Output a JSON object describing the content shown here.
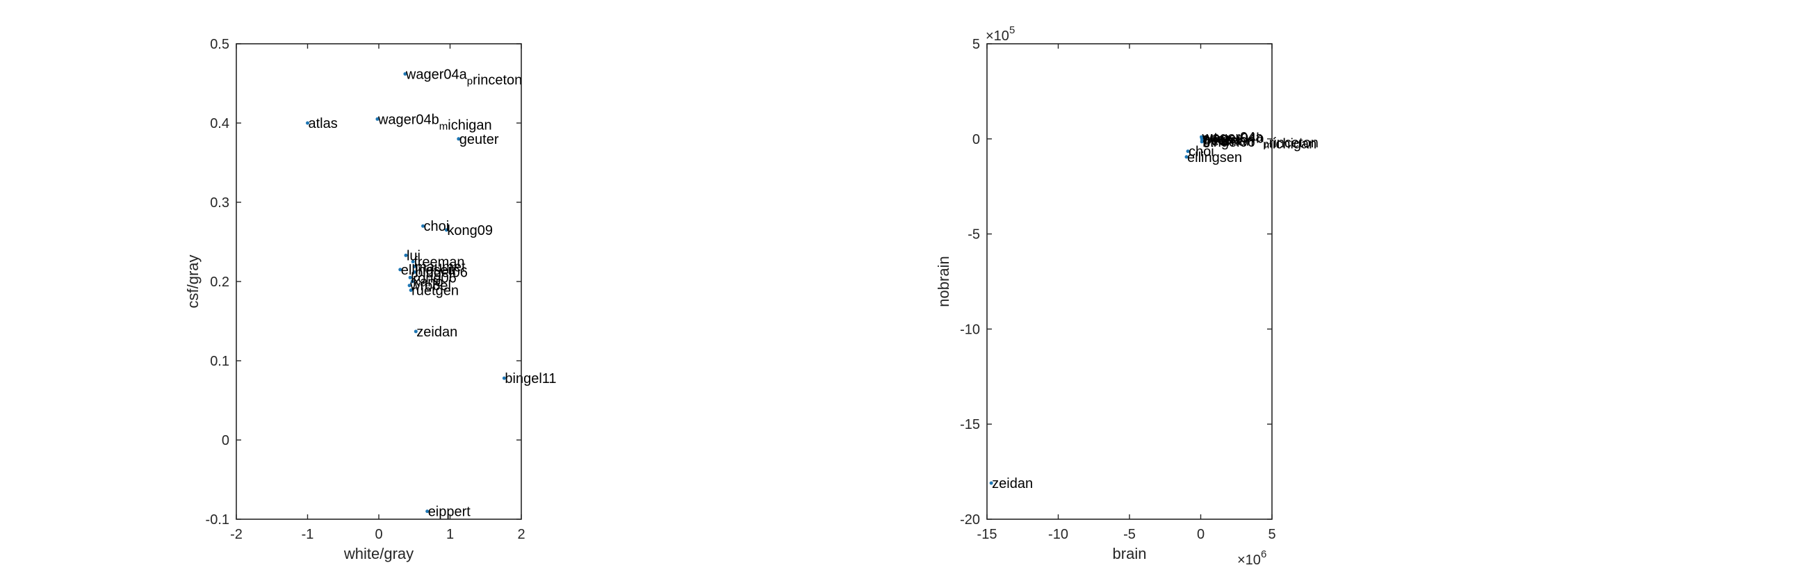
{
  "chart_data": [
    {
      "type": "scatter",
      "xlabel": "white/gray",
      "ylabel": "csf/gray",
      "xlim": [
        -2,
        2
      ],
      "ylim": [
        -0.1,
        0.5
      ],
      "xticks": [
        "-2",
        "-1",
        "0",
        "1",
        "2"
      ],
      "yticks": [
        "-0.1",
        "0",
        "0.1",
        "0.2",
        "0.3",
        "0.4",
        "0.5"
      ],
      "point_color": "#1f77b4",
      "points": [
        {
          "label": "wager04a_princeton",
          "x": 0.37,
          "y": 0.462
        },
        {
          "label": "wager04b_michigan",
          "x": -0.02,
          "y": 0.405
        },
        {
          "label": "atlas",
          "x": -1.0,
          "y": 0.4
        },
        {
          "label": "geuter",
          "x": 1.12,
          "y": 0.38
        },
        {
          "label": "choi",
          "x": 0.62,
          "y": 0.27
        },
        {
          "label": "kong09",
          "x": 0.95,
          "y": 0.265
        },
        {
          "label": "lui",
          "x": 0.38,
          "y": 0.233
        },
        {
          "label": "freeman",
          "x": 0.48,
          "y": 0.225
        },
        {
          "label": "maumet",
          "x": 0.5,
          "y": 0.219
        },
        {
          "label": "ellingsen",
          "x": 0.3,
          "y": 0.215
        },
        {
          "label": "bingel06",
          "x": 0.5,
          "y": 0.212
        },
        {
          "label": "kong06",
          "x": 0.44,
          "y": 0.205
        },
        {
          "label": "kano",
          "x": 0.47,
          "y": 0.2
        },
        {
          "label": "wrobel",
          "x": 0.43,
          "y": 0.195
        },
        {
          "label": "ruetgen",
          "x": 0.45,
          "y": 0.189
        },
        {
          "label": "zeidan",
          "x": 0.52,
          "y": 0.137
        },
        {
          "label": "bingel11",
          "x": 1.76,
          "y": 0.078
        },
        {
          "label": "eippert",
          "x": 0.68,
          "y": -0.09
        }
      ]
    },
    {
      "type": "scatter",
      "xlabel": "brain",
      "ylabel": "nobrain",
      "xlim": [
        -15,
        5
      ],
      "ylim": [
        -20,
        5
      ],
      "x_multiplier": "×10",
      "x_multiplier_exp": "6",
      "y_multiplier": "×10",
      "y_multiplier_exp": "5",
      "xticks": [
        "-15",
        "-10",
        "-5",
        "0",
        "5"
      ],
      "yticks": [
        "-20",
        "-15",
        "-10",
        "-5",
        "0",
        "5"
      ],
      "point_color": "#1f77b4",
      "points": [
        {
          "label": "wager04a_princeton",
          "x": 0.05,
          "y": 0.1
        },
        {
          "label": "wager04b_michigan",
          "x": 0.1,
          "y": 0.05
        },
        {
          "label": "atlas",
          "x": 0.08,
          "y": 0.02
        },
        {
          "label": "geuter",
          "x": 0.1,
          "y": -0.05
        },
        {
          "label": "freeman",
          "x": 0.1,
          "y": -0.1
        },
        {
          "label": "bingel06",
          "x": 0.08,
          "y": -0.15
        },
        {
          "label": "choi",
          "x": -0.9,
          "y": -0.65
        },
        {
          "label": "ellingsen",
          "x": -1.0,
          "y": -0.95
        },
        {
          "label": "zeidan",
          "x": -14.7,
          "y": -18.1
        }
      ]
    }
  ]
}
